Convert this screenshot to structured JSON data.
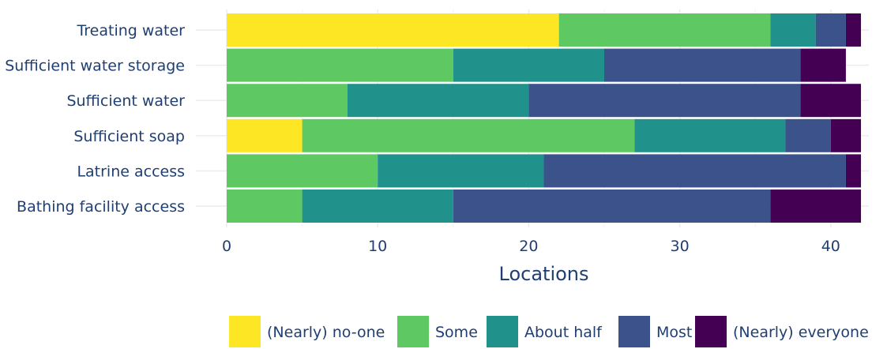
{
  "chart_data": {
    "type": "bar",
    "orientation": "horizontal",
    "stacked": true,
    "categories": [
      "Treating water",
      "Sufficient water storage",
      "Sufficient water",
      "Sufficient soap",
      "Latrine access",
      "Bathing facility access"
    ],
    "series": [
      {
        "name": "(Nearly) no-one",
        "color": "#fde725",
        "values": [
          22,
          0,
          0,
          5,
          0,
          0
        ]
      },
      {
        "name": "Some",
        "color": "#5ec962",
        "values": [
          14,
          15,
          8,
          22,
          10,
          5
        ]
      },
      {
        "name": "About half",
        "color": "#21918c",
        "values": [
          3,
          10,
          12,
          10,
          11,
          10
        ]
      },
      {
        "name": "Most",
        "color": "#3b528b",
        "values": [
          2,
          13,
          18,
          3,
          20,
          21
        ]
      },
      {
        "name": "(Nearly) everyone",
        "color": "#440154",
        "values": [
          1,
          3,
          4,
          2,
          1,
          6
        ]
      }
    ],
    "xlabel": "Locations",
    "ylabel": "",
    "xlim": [
      0,
      42
    ],
    "xticks": [
      0,
      10,
      20,
      30,
      40
    ],
    "grid": true,
    "legend_position": "bottom"
  }
}
